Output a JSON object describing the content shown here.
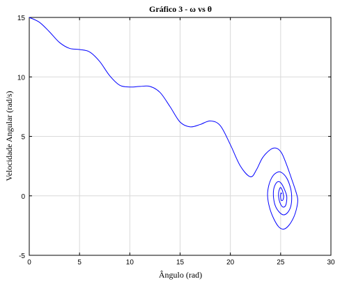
{
  "chart_data": {
    "type": "line",
    "title": "Gráfico 3 - ω vs θ",
    "xlabel": "Ângulo (rad)",
    "ylabel": "Velocidade Angular (rad/s)",
    "xlim": [
      0,
      30
    ],
    "ylim": [
      -5,
      15
    ],
    "xticks": [
      0,
      5,
      10,
      15,
      20,
      25,
      30
    ],
    "yticks": [
      -5,
      0,
      5,
      10,
      15
    ],
    "grid": true,
    "color": "#0000ff",
    "series": [
      {
        "x": [
          0,
          1,
          2,
          3,
          4,
          5,
          6,
          7,
          8,
          9,
          10,
          11,
          12,
          13,
          14,
          15,
          16,
          17,
          18,
          19,
          20,
          21,
          22,
          22.6,
          23.2,
          24,
          24.6,
          25.1,
          25.6,
          26.1,
          26.5,
          26.7,
          26.6,
          26.3,
          25.8,
          25.3,
          24.8,
          24.3,
          23.9,
          23.7,
          23.8,
          24.1,
          24.5,
          25.0,
          25.6,
          26.0,
          26.1,
          26.0,
          25.7,
          25.3,
          24.9,
          24.5,
          24.3,
          24.3,
          24.5,
          24.8,
          25.1,
          25.4,
          25.6,
          25.6,
          25.5,
          25.3,
          25.1,
          24.9,
          24.8,
          24.8,
          24.9,
          25.0,
          25.15,
          25.25,
          25.3,
          25.25,
          25.15,
          25.05,
          25.0,
          25.0,
          25.05,
          25.1
        ],
        "y": [
          15,
          14.6,
          13.8,
          12.9,
          12.4,
          12.3,
          12.1,
          11.3,
          10.1,
          9.3,
          9.15,
          9.2,
          9.2,
          8.7,
          7.5,
          6.2,
          5.8,
          6.0,
          6.3,
          5.9,
          4.3,
          2.5,
          1.6,
          2.2,
          3.2,
          3.9,
          4.0,
          3.6,
          2.6,
          1.4,
          0.4,
          -0.3,
          -1.0,
          -1.8,
          -2.5,
          -2.8,
          -2.6,
          -1.9,
          -1.0,
          0.0,
          0.8,
          1.5,
          1.9,
          2.0,
          1.5,
          0.6,
          -0.2,
          -0.9,
          -1.4,
          -1.6,
          -1.4,
          -0.9,
          -0.2,
          0.5,
          1.0,
          1.2,
          1.0,
          0.5,
          0.0,
          -0.4,
          -0.8,
          -0.95,
          -0.85,
          -0.5,
          -0.1,
          0.3,
          0.6,
          0.7,
          0.5,
          0.2,
          -0.05,
          -0.3,
          -0.4,
          -0.35,
          -0.15,
          0.1,
          0.25,
          0.15
        ]
      }
    ]
  }
}
